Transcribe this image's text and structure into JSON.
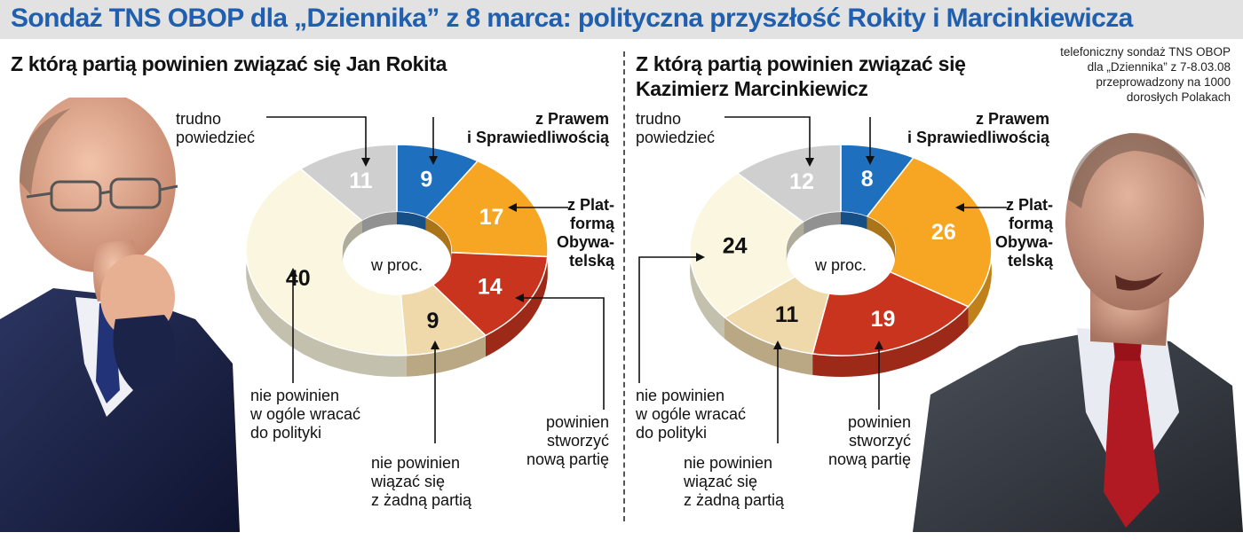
{
  "title": "Sondaż TNS OBOP dla „Dziennika” z 8 marca: polityczna przyszłość Rokity i Marcinkiewicza",
  "source_note": [
    "telefoniczny sondaż TNS OBOP",
    "dla „Dziennika” z 7-8.03.08",
    "przeprowadzony na 1000",
    "dorosłych Polakach"
  ],
  "colors": {
    "title": "#1f5fae",
    "pis": "#1f6fbf",
    "po": "#f6a623",
    "new_party": "#c9341f",
    "no_party": "#efd8aa",
    "no_return": "#fbf6df",
    "hard_to_say": "#cfcfcf"
  },
  "icons": [
    "person-photo-rokita",
    "person-photo-marcinkiewicz"
  ],
  "chart_data": [
    {
      "type": "pie",
      "title": "Z którą partią powinien związać się Jan Rokita",
      "center_label": "w proc.",
      "slices": [
        {
          "key": "pis",
          "label_lines": [
            "z Prawem",
            "i Sprawiedliwością"
          ],
          "value": 9
        },
        {
          "key": "po",
          "label_lines": [
            "z Plat-",
            "formą",
            "Obywa-",
            "telską"
          ],
          "value": 17
        },
        {
          "key": "new_party",
          "label_lines": [
            "powinien",
            "stworzyć",
            "nową partię"
          ],
          "value": 14
        },
        {
          "key": "no_party",
          "label_lines": [
            "nie powinien",
            "wiązać się",
            "z żadną partią"
          ],
          "value": 9
        },
        {
          "key": "no_return",
          "label_lines": [
            "nie powinien",
            "w ogóle wracać",
            "do polityki"
          ],
          "value": 40
        },
        {
          "key": "hard_to_say",
          "label_lines": [
            "trudno",
            "powiedzieć"
          ],
          "value": 11
        }
      ]
    },
    {
      "type": "pie",
      "title": "Z którą partią powinien związać się Kazimierz Marcinkiewicz",
      "center_label": "w proc.",
      "slices": [
        {
          "key": "pis",
          "label_lines": [
            "z Prawem",
            "i Sprawiedliwością"
          ],
          "value": 8
        },
        {
          "key": "po",
          "label_lines": [
            "z Plat-",
            "formą",
            "Obywa-",
            "telską"
          ],
          "value": 26
        },
        {
          "key": "new_party",
          "label_lines": [
            "powinien",
            "stworzyć",
            "nową partię"
          ],
          "value": 19
        },
        {
          "key": "no_party",
          "label_lines": [
            "nie powinien",
            "wiązać się",
            "z żadną partią"
          ],
          "value": 11
        },
        {
          "key": "no_return",
          "label_lines": [
            "nie powinien",
            "w ogóle wracać",
            "do polityki"
          ],
          "value": 24
        },
        {
          "key": "hard_to_say",
          "label_lines": [
            "trudno",
            "powiedzieć"
          ],
          "value": 12
        }
      ]
    }
  ]
}
